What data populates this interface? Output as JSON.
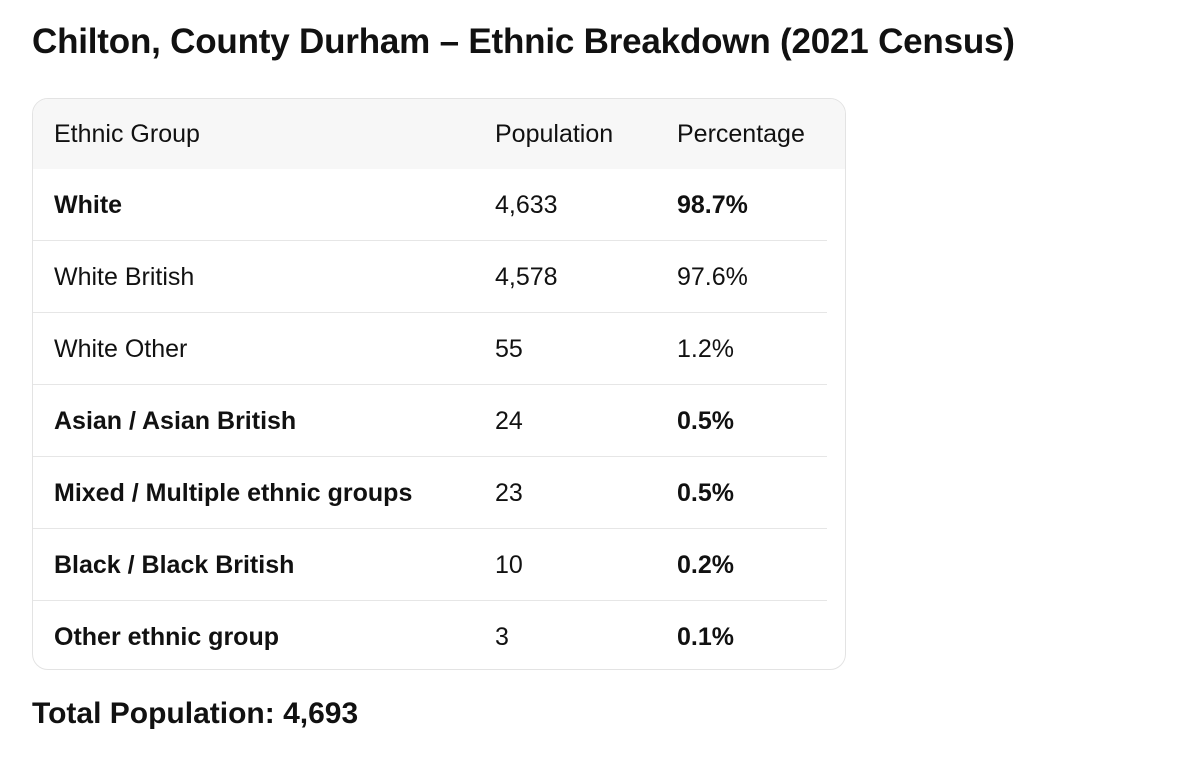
{
  "title": "Chilton, County Durham – Ethnic Breakdown (2021 Census)",
  "table": {
    "headers": [
      "Ethnic Group",
      "Population",
      "Percentage"
    ],
    "rows": [
      {
        "group": "White",
        "population": "4,633",
        "percentage": "98.7%",
        "emphasis": "bold"
      },
      {
        "group": "White British",
        "population": "4,578",
        "percentage": "97.6%",
        "emphasis": "regular"
      },
      {
        "group": "White Other",
        "population": "55",
        "percentage": "1.2%",
        "emphasis": "regular"
      },
      {
        "group": "Asian / Asian British",
        "population": "24",
        "percentage": "0.5%",
        "emphasis": "bold"
      },
      {
        "group": "Mixed / Multiple ethnic groups",
        "population": "23",
        "percentage": "0.5%",
        "emphasis": "bold"
      },
      {
        "group": "Black / Black British",
        "population": "10",
        "percentage": "0.2%",
        "emphasis": "bold"
      },
      {
        "group": "Other ethnic group",
        "population": "3",
        "percentage": "0.1%",
        "emphasis": "bold"
      }
    ]
  },
  "total": {
    "label": "Total Population:",
    "value": "4,693"
  }
}
